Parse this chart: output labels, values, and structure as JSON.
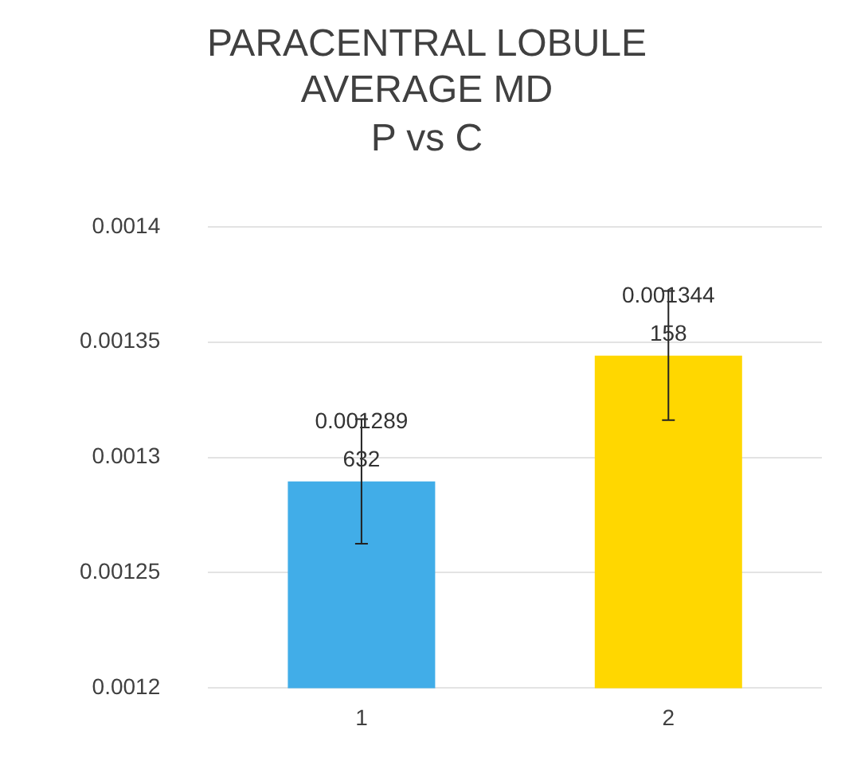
{
  "chart_data": {
    "type": "bar",
    "title": "PARACENTRAL LOBULE AVERAGE MD",
    "subtitle": "P vs C",
    "categories": [
      "1",
      "2"
    ],
    "values": [
      0.001289632,
      0.001344158
    ],
    "colors": [
      "#41ade8",
      "#ffd700"
    ],
    "errors": [
      2.7e-05,
      2.8e-05
    ],
    "data_labels": true,
    "ylim": [
      0.0012,
      0.0014
    ],
    "yticks": [
      0.0012,
      0.00125,
      0.0013,
      0.00135,
      0.0014
    ],
    "grid": "y",
    "legend": false
  }
}
